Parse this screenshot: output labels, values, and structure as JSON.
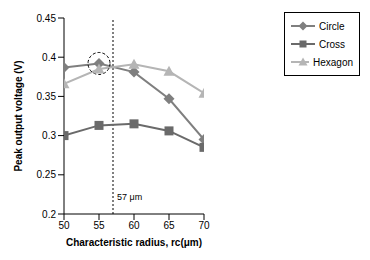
{
  "chart_data": {
    "type": "line",
    "x_label": "Characteristic radius, rc(μm)",
    "y_label": "Peak output voltage (V)",
    "x": [
      50,
      55,
      60,
      65,
      70
    ],
    "series": [
      {
        "name": "Circle",
        "color": "#7f7f7f",
        "marker": "diamond",
        "values": [
          0.387,
          0.392,
          0.381,
          0.347,
          0.295
        ]
      },
      {
        "name": "Cross",
        "color": "#6a6a6a",
        "marker": "square",
        "values": [
          0.3,
          0.313,
          0.315,
          0.306,
          0.285
        ]
      },
      {
        "name": "Hexagon",
        "color": "#b5b5b5",
        "marker": "triangle",
        "values": [
          0.366,
          0.385,
          0.391,
          0.382,
          0.354
        ]
      }
    ],
    "xlim": [
      50,
      70
    ],
    "xticks": [
      50,
      55,
      60,
      65,
      70
    ],
    "ylim": [
      0.2,
      0.45
    ],
    "yticks": [
      0.2,
      0.25,
      0.3,
      0.35,
      0.4,
      0.45
    ],
    "annotations": [
      {
        "text": "57 μm",
        "x": 57
      }
    ],
    "grid": false,
    "legend": "top right"
  }
}
